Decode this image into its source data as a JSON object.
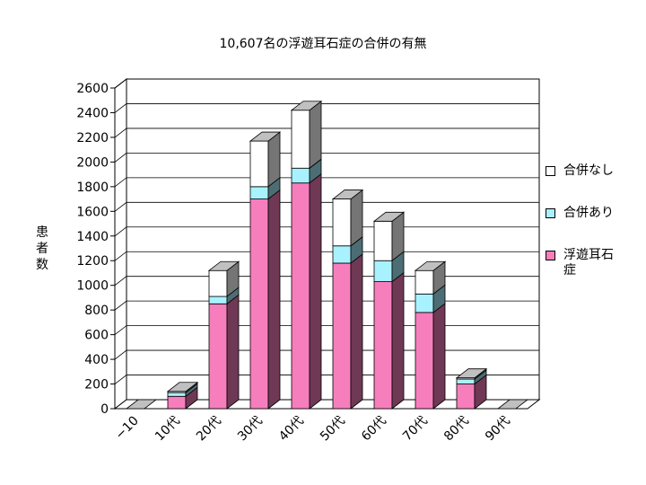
{
  "chart_data": {
    "type": "bar",
    "stacked": true,
    "three_d": true,
    "title": "10,607名の浮遊耳石症の合併の有無",
    "ylabel": "患者数",
    "xlabel": "",
    "categories": [
      "−10",
      "10代",
      "20代",
      "30代",
      "40代",
      "50代",
      "60代",
      "70代",
      "80代",
      "90代"
    ],
    "yticks": [
      0,
      200,
      400,
      600,
      800,
      1000,
      1200,
      1400,
      1600,
      1800,
      2000,
      2200,
      2400,
      2600
    ],
    "ylim": [
      0,
      2600
    ],
    "grid": true,
    "legend_position": "right",
    "series": [
      {
        "name": "浮遊耳石症",
        "color": "#f77ebd",
        "values": [
          0,
          100,
          850,
          1700,
          1830,
          1180,
          1030,
          780,
          200,
          0
        ]
      },
      {
        "name": "合併あり",
        "color": "#a8f2ff",
        "values": [
          0,
          30,
          60,
          100,
          120,
          140,
          170,
          150,
          40,
          0
        ]
      },
      {
        "name": "合併なし",
        "color": "#ffffff",
        "values": [
          0,
          10,
          210,
          370,
          470,
          380,
          320,
          190,
          10,
          0
        ]
      }
    ],
    "legend_order": [
      2,
      1,
      0
    ]
  }
}
